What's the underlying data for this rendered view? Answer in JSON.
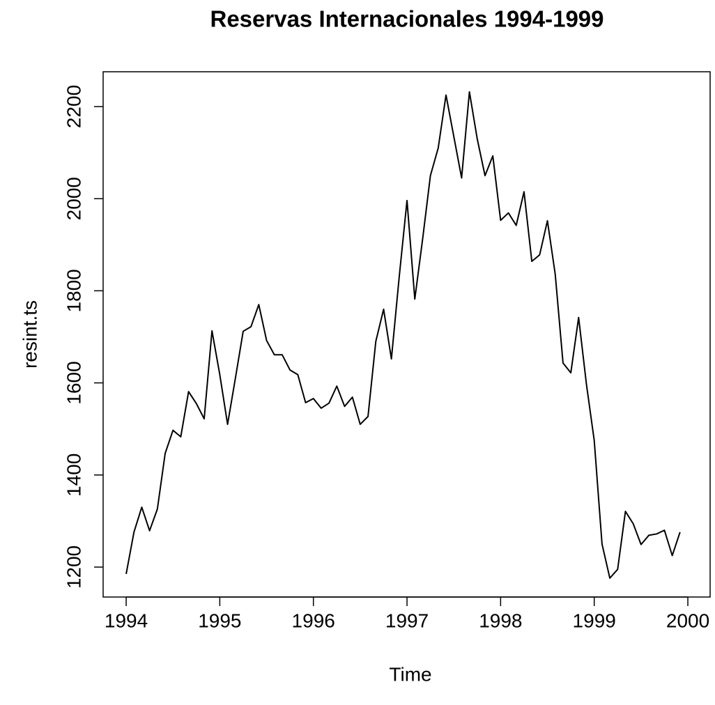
{
  "chart_data": {
    "type": "line",
    "title": "Reservas Internacionales 1994-1999",
    "x_label": "Time",
    "y_label": "resint.ts",
    "x": [
      1994,
      1994.0833,
      1994.1667,
      1994.25,
      1994.3333,
      1994.4167,
      1994.5,
      1994.5833,
      1994.6667,
      1994.75,
      1994.8333,
      1994.9167,
      1995,
      1995.0833,
      1995.1667,
      1995.25,
      1995.3333,
      1995.4167,
      1995.5,
      1995.5833,
      1995.6667,
      1995.75,
      1995.8333,
      1995.9167,
      1996,
      1996.0833,
      1996.1667,
      1996.25,
      1996.3333,
      1996.4167,
      1996.5,
      1996.5833,
      1996.6667,
      1996.75,
      1996.8333,
      1996.9167,
      1997,
      1997.0833,
      1997.1667,
      1997.25,
      1997.3333,
      1997.4167,
      1997.5,
      1997.5833,
      1997.6667,
      1997.75,
      1997.8333,
      1997.9167,
      1998,
      1998.0833,
      1998.1667,
      1998.25,
      1998.3333,
      1998.4167,
      1998.5,
      1998.5833,
      1998.6667,
      1998.75,
      1998.8333,
      1998.9167,
      1999,
      1999.0833,
      1999.1667,
      1999.25,
      1999.3333,
      1999.4167,
      1999.5,
      1999.5833,
      1999.6667,
      1999.75,
      1999.8333,
      1999.9167
    ],
    "series": [
      {
        "name": "resint.ts",
        "color": "#000000",
        "values": [
          1185,
          1276,
          1330,
          1279,
          1326,
          1447,
          1497,
          1483,
          1581,
          1555,
          1522,
          1713,
          1618,
          1510,
          1610,
          1712,
          1722,
          1770,
          1692,
          1661,
          1661,
          1628,
          1618,
          1557,
          1566,
          1545,
          1556,
          1593,
          1549,
          1569,
          1510,
          1527,
          1690,
          1760,
          1652,
          1830,
          1996,
          1782,
          1912,
          2050,
          2110,
          2225,
          2135,
          2045,
          2232,
          2130,
          2050,
          2093,
          1953,
          1969,
          1942,
          2015,
          1864,
          1878,
          1952,
          1836,
          1643,
          1622,
          1742,
          1597,
          1475,
          1250,
          1176,
          1195,
          1321,
          1294,
          1249,
          1269,
          1272,
          1280,
          1225,
          1276
        ]
      }
    ],
    "xlim": [
      1993.754,
      2000.238
    ],
    "ylim": [
      1135,
      2275.6
    ],
    "xticks": [
      1994,
      1995,
      1996,
      1997,
      1998,
      1999,
      2000
    ],
    "yticks": [
      1200,
      1400,
      1600,
      1800,
      2000,
      2200
    ],
    "grid": false
  }
}
